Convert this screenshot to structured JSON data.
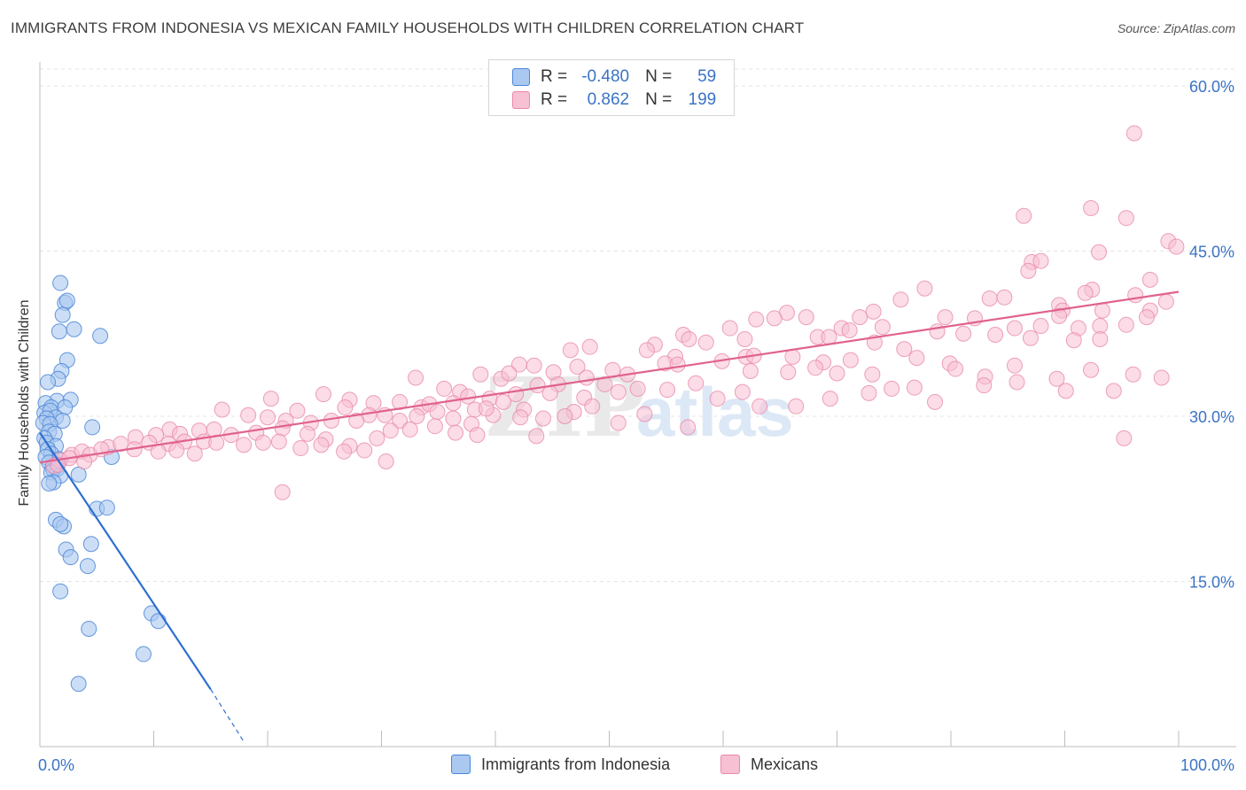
{
  "header": {
    "title": "IMMIGRANTS FROM INDONESIA VS MEXICAN FAMILY HOUSEHOLDS WITH CHILDREN CORRELATION CHART",
    "source": "Source: ZipAtlas.com"
  },
  "legend": {
    "rows": [
      {
        "r_label": "R =",
        "r_value": "-0.480",
        "n_label": "N =",
        "n_value": "59"
      },
      {
        "r_label": "R =",
        "r_value": "0.862",
        "n_label": "N =",
        "n_value": "199"
      }
    ]
  },
  "bottom_legend": {
    "series_a": "Immigrants from Indonesia",
    "series_b": "Mexicans"
  },
  "watermark": {
    "part1": "ZIP",
    "part2": "atlas"
  },
  "colors": {
    "indonesia_fill": "#aac8f0",
    "indonesia_stroke": "#4a86d8",
    "indonesia_line": "#2f6fd0",
    "mexican_fill": "#f7c0d3",
    "mexican_stroke": "#e889aa",
    "mexican_line": "#e0628f",
    "axis_tick_text": "#3b73c6",
    "grid": "#e4e4e4"
  },
  "chart_data": {
    "type": "scatter",
    "ylabel": "Family Households with Children",
    "xlabel": "",
    "xlim": [
      0,
      100
    ],
    "ylim": [
      0,
      60
    ],
    "x_ticks": [
      {
        "value": 0,
        "label": "0.0%"
      },
      {
        "value": 100,
        "label": "100.0%"
      }
    ],
    "y_ticks": [
      {
        "value": 15,
        "label": "15.0%"
      },
      {
        "value": 30,
        "label": "30.0%"
      },
      {
        "value": 45,
        "label": "45.0%"
      },
      {
        "value": 60,
        "label": "60.0%"
      }
    ],
    "series": [
      {
        "name": "Immigrants from Indonesia",
        "r": -0.48,
        "n": 59,
        "trend": {
          "x0": 0.0,
          "y0": 28.5,
          "x1": 15.0,
          "y1": 5.2,
          "dash_x1": 18.0,
          "dash_y1": 0.3
        },
        "points": [
          [
            1.8,
            42.1
          ],
          [
            2.2,
            40.3
          ],
          [
            2.4,
            40.5
          ],
          [
            2.0,
            39.2
          ],
          [
            3.0,
            37.9
          ],
          [
            1.7,
            37.7
          ],
          [
            5.3,
            37.3
          ],
          [
            2.4,
            35.1
          ],
          [
            1.9,
            34.1
          ],
          [
            1.6,
            33.4
          ],
          [
            0.7,
            33.1
          ],
          [
            1.5,
            31.4
          ],
          [
            2.7,
            31.5
          ],
          [
            0.5,
            31.2
          ],
          [
            1.0,
            30.8
          ],
          [
            2.2,
            30.8
          ],
          [
            0.4,
            30.3
          ],
          [
            0.9,
            30.5
          ],
          [
            1.4,
            29.9
          ],
          [
            0.6,
            29.8
          ],
          [
            2.0,
            29.6
          ],
          [
            0.3,
            29.4
          ],
          [
            0.9,
            29.3
          ],
          [
            4.6,
            29.0
          ],
          [
            0.8,
            28.6
          ],
          [
            1.3,
            28.4
          ],
          [
            0.4,
            28.0
          ],
          [
            0.6,
            27.6
          ],
          [
            1.4,
            27.3
          ],
          [
            0.7,
            27.0
          ],
          [
            1.0,
            26.6
          ],
          [
            0.5,
            26.3
          ],
          [
            6.3,
            26.3
          ],
          [
            1.7,
            26.1
          ],
          [
            0.8,
            25.8
          ],
          [
            1.4,
            25.6
          ],
          [
            1.1,
            25.3
          ],
          [
            1.2,
            25.1
          ],
          [
            1.5,
            25.2
          ],
          [
            1.0,
            24.9
          ],
          [
            1.8,
            24.6
          ],
          [
            3.4,
            24.7
          ],
          [
            1.2,
            24.0
          ],
          [
            0.8,
            23.9
          ],
          [
            5.0,
            21.6
          ],
          [
            5.9,
            21.7
          ],
          [
            1.4,
            20.6
          ],
          [
            2.1,
            20.0
          ],
          [
            1.8,
            20.2
          ],
          [
            4.5,
            18.4
          ],
          [
            2.3,
            17.9
          ],
          [
            2.7,
            17.2
          ],
          [
            4.2,
            16.4
          ],
          [
            1.8,
            14.1
          ],
          [
            9.8,
            12.1
          ],
          [
            10.4,
            11.4
          ],
          [
            4.3,
            10.7
          ],
          [
            9.1,
            8.4
          ],
          [
            3.4,
            5.7
          ]
        ]
      },
      {
        "name": "Mexicans",
        "r": 0.862,
        "n": 199,
        "trend": {
          "x0": 0.0,
          "y0": 25.8,
          "x1": 100.0,
          "y1": 41.3
        },
        "points": [
          [
            96.1,
            55.7
          ],
          [
            86.4,
            48.2
          ],
          [
            92.3,
            48.9
          ],
          [
            95.4,
            48.0
          ],
          [
            99.1,
            45.9
          ],
          [
            99.8,
            45.4
          ],
          [
            93.0,
            44.9
          ],
          [
            87.1,
            44.0
          ],
          [
            87.9,
            44.1
          ],
          [
            86.8,
            43.2
          ],
          [
            97.5,
            42.4
          ],
          [
            92.4,
            41.5
          ],
          [
            91.8,
            41.2
          ],
          [
            96.2,
            41.0
          ],
          [
            77.7,
            41.6
          ],
          [
            75.6,
            40.6
          ],
          [
            83.4,
            40.7
          ],
          [
            84.7,
            40.8
          ],
          [
            89.5,
            40.1
          ],
          [
            89.8,
            39.6
          ],
          [
            93.3,
            39.6
          ],
          [
            97.5,
            39.6
          ],
          [
            98.9,
            40.4
          ],
          [
            89.5,
            39.1
          ],
          [
            79.5,
            39.0
          ],
          [
            82.1,
            38.9
          ],
          [
            85.6,
            38.0
          ],
          [
            87.9,
            38.2
          ],
          [
            91.2,
            38.0
          ],
          [
            93.1,
            38.2
          ],
          [
            95.4,
            38.3
          ],
          [
            97.2,
            39.0
          ],
          [
            73.2,
            39.5
          ],
          [
            74.0,
            38.1
          ],
          [
            70.4,
            38.0
          ],
          [
            65.6,
            39.4
          ],
          [
            67.3,
            39.0
          ],
          [
            72.0,
            39.0
          ],
          [
            62.9,
            38.8
          ],
          [
            64.5,
            38.9
          ],
          [
            78.8,
            37.7
          ],
          [
            81.1,
            37.5
          ],
          [
            83.9,
            37.4
          ],
          [
            87.0,
            37.1
          ],
          [
            90.8,
            36.9
          ],
          [
            93.1,
            37.0
          ],
          [
            68.3,
            37.2
          ],
          [
            69.3,
            37.2
          ],
          [
            71.1,
            37.8
          ],
          [
            73.3,
            36.7
          ],
          [
            75.9,
            36.1
          ],
          [
            60.6,
            38.0
          ],
          [
            61.9,
            37.0
          ],
          [
            62.0,
            35.4
          ],
          [
            56.5,
            37.4
          ],
          [
            57.0,
            37.0
          ],
          [
            58.5,
            36.7
          ],
          [
            54.0,
            36.5
          ],
          [
            53.3,
            36.0
          ],
          [
            46.6,
            36.0
          ],
          [
            48.3,
            36.3
          ],
          [
            55.8,
            35.4
          ],
          [
            59.9,
            35.0
          ],
          [
            62.7,
            35.5
          ],
          [
            66.1,
            35.4
          ],
          [
            68.8,
            34.9
          ],
          [
            71.2,
            35.1
          ],
          [
            73.1,
            33.8
          ],
          [
            77.0,
            35.3
          ],
          [
            79.9,
            34.8
          ],
          [
            83.0,
            33.6
          ],
          [
            85.6,
            34.6
          ],
          [
            89.3,
            33.4
          ],
          [
            92.3,
            34.2
          ],
          [
            96.0,
            33.8
          ],
          [
            98.5,
            33.5
          ],
          [
            42.1,
            34.7
          ],
          [
            43.4,
            34.6
          ],
          [
            45.1,
            34.0
          ],
          [
            47.2,
            34.5
          ],
          [
            50.3,
            34.2
          ],
          [
            51.6,
            33.8
          ],
          [
            54.9,
            34.8
          ],
          [
            56.0,
            34.7
          ],
          [
            57.6,
            33.0
          ],
          [
            62.4,
            34.1
          ],
          [
            65.7,
            34.0
          ],
          [
            68.1,
            34.4
          ],
          [
            70.0,
            33.9
          ],
          [
            74.8,
            32.5
          ],
          [
            76.8,
            32.6
          ],
          [
            80.4,
            34.3
          ],
          [
            82.9,
            32.8
          ],
          [
            85.8,
            33.1
          ],
          [
            90.1,
            32.3
          ],
          [
            94.3,
            32.3
          ],
          [
            38.7,
            33.8
          ],
          [
            40.5,
            33.4
          ],
          [
            41.2,
            33.9
          ],
          [
            43.7,
            32.8
          ],
          [
            45.5,
            32.9
          ],
          [
            48.0,
            33.5
          ],
          [
            49.6,
            32.9
          ],
          [
            52.5,
            32.5
          ],
          [
            55.1,
            32.4
          ],
          [
            59.5,
            31.6
          ],
          [
            61.7,
            32.2
          ],
          [
            63.2,
            30.9
          ],
          [
            66.4,
            30.9
          ],
          [
            69.4,
            31.6
          ],
          [
            72.8,
            32.1
          ],
          [
            78.6,
            31.3
          ],
          [
            33.0,
            33.5
          ],
          [
            35.5,
            32.5
          ],
          [
            36.9,
            32.2
          ],
          [
            37.6,
            31.8
          ],
          [
            39.5,
            31.6
          ],
          [
            40.7,
            31.3
          ],
          [
            41.8,
            32.0
          ],
          [
            44.8,
            32.1
          ],
          [
            47.8,
            31.7
          ],
          [
            50.8,
            32.2
          ],
          [
            24.9,
            32.0
          ],
          [
            27.2,
            31.5
          ],
          [
            29.3,
            31.2
          ],
          [
            31.6,
            31.3
          ],
          [
            33.5,
            30.8
          ],
          [
            34.2,
            31.1
          ],
          [
            36.3,
            31.2
          ],
          [
            38.2,
            30.6
          ],
          [
            39.8,
            30.1
          ],
          [
            42.5,
            30.6
          ],
          [
            44.2,
            29.8
          ],
          [
            46.9,
            30.4
          ],
          [
            48.5,
            30.9
          ],
          [
            20.3,
            31.6
          ],
          [
            22.6,
            30.5
          ],
          [
            26.8,
            30.8
          ],
          [
            28.9,
            30.1
          ],
          [
            30.3,
            30.1
          ],
          [
            31.6,
            29.6
          ],
          [
            33.1,
            30.0
          ],
          [
            34.9,
            30.4
          ],
          [
            36.3,
            29.8
          ],
          [
            37.9,
            29.3
          ],
          [
            39.2,
            30.7
          ],
          [
            42.2,
            29.9
          ],
          [
            46.1,
            30.0
          ],
          [
            50.8,
            29.4
          ],
          [
            53.1,
            30.2
          ],
          [
            56.9,
            29.0
          ],
          [
            16.0,
            30.6
          ],
          [
            18.3,
            30.1
          ],
          [
            20.0,
            29.9
          ],
          [
            21.6,
            29.6
          ],
          [
            23.8,
            29.4
          ],
          [
            25.6,
            29.6
          ],
          [
            27.8,
            29.6
          ],
          [
            30.8,
            28.7
          ],
          [
            32.5,
            28.8
          ],
          [
            34.7,
            29.1
          ],
          [
            36.5,
            28.5
          ],
          [
            38.4,
            28.3
          ],
          [
            43.6,
            28.2
          ],
          [
            11.4,
            28.8
          ],
          [
            12.3,
            28.4
          ],
          [
            14.0,
            28.7
          ],
          [
            15.3,
            28.8
          ],
          [
            16.8,
            28.3
          ],
          [
            19.0,
            28.5
          ],
          [
            21.3,
            28.9
          ],
          [
            23.5,
            28.4
          ],
          [
            25.1,
            27.9
          ],
          [
            27.2,
            27.3
          ],
          [
            29.6,
            28.0
          ],
          [
            8.4,
            28.1
          ],
          [
            10.2,
            28.3
          ],
          [
            11.3,
            27.5
          ],
          [
            12.7,
            27.7
          ],
          [
            14.4,
            27.7
          ],
          [
            15.5,
            27.6
          ],
          [
            17.9,
            27.4
          ],
          [
            19.6,
            27.6
          ],
          [
            21.0,
            27.7
          ],
          [
            22.9,
            27.1
          ],
          [
            24.7,
            27.4
          ],
          [
            26.7,
            26.8
          ],
          [
            28.5,
            26.9
          ],
          [
            6.0,
            27.2
          ],
          [
            7.1,
            27.5
          ],
          [
            8.3,
            27.0
          ],
          [
            9.6,
            27.6
          ],
          [
            10.4,
            26.8
          ],
          [
            12.0,
            26.9
          ],
          [
            13.6,
            26.6
          ],
          [
            2.8,
            26.5
          ],
          [
            3.7,
            26.8
          ],
          [
            4.4,
            26.5
          ],
          [
            5.4,
            27.0
          ],
          [
            1.8,
            26.0
          ],
          [
            2.6,
            26.2
          ],
          [
            3.9,
            25.9
          ],
          [
            1.2,
            25.5
          ],
          [
            1.6,
            25.6
          ],
          [
            30.4,
            25.9
          ],
          [
            21.3,
            23.1
          ],
          [
            95.2,
            28.0
          ]
        ]
      }
    ]
  }
}
